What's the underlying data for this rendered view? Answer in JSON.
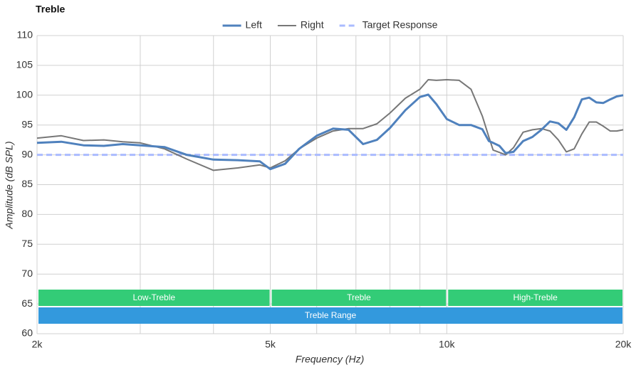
{
  "chart_data": {
    "type": "line",
    "title": "Treble",
    "x_label": "Frequency (Hz)",
    "y_label": "Amplitude (dB SPL)",
    "log_x": true,
    "grid": true,
    "legend": "top",
    "xlim": [
      2000,
      20000
    ],
    "ylim": [
      60,
      110
    ],
    "xticks": [
      {
        "value": 2000,
        "label": "2k"
      },
      {
        "value": 5000,
        "label": "5k"
      },
      {
        "value": 10000,
        "label": "10k"
      },
      {
        "value": 20000,
        "label": "20k"
      }
    ],
    "xgrid": [
      3000,
      4000,
      6000,
      7000,
      8000,
      9000
    ],
    "yticks": [
      60,
      65,
      70,
      75,
      80,
      85,
      90,
      95,
      100,
      105,
      110
    ],
    "x": [
      2000,
      2200,
      2400,
      2600,
      2800,
      3000,
      3300,
      3600,
      4000,
      4400,
      4800,
      5000,
      5300,
      5600,
      6000,
      6400,
      6800,
      7200,
      7600,
      8000,
      8500,
      9000,
      9300,
      9600,
      10000,
      10500,
      11000,
      11500,
      11800,
      12000,
      12300,
      12600,
      13000,
      13500,
      14000,
      14500,
      15000,
      15500,
      16000,
      16500,
      17000,
      17500,
      18000,
      18500,
      19000,
      19500,
      20000
    ],
    "series": [
      {
        "name": "Left",
        "color": "#4f81bd",
        "width": 3,
        "dash": false,
        "values": [
          92.0,
          92.2,
          91.6,
          91.5,
          91.8,
          91.6,
          91.3,
          90.0,
          89.2,
          89.1,
          88.9,
          87.6,
          88.5,
          91.0,
          93.2,
          94.4,
          94.2,
          91.8,
          92.5,
          94.5,
          97.5,
          99.7,
          100.1,
          98.5,
          96.0,
          95.0,
          95.0,
          94.3,
          92.3,
          92.0,
          91.5,
          90.3,
          90.5,
          92.3,
          93.0,
          94.2,
          95.6,
          95.3,
          94.2,
          96.3,
          99.3,
          99.6,
          98.8,
          98.7,
          99.3,
          99.8,
          100.0
        ]
      },
      {
        "name": "Right",
        "color": "#777777",
        "width": 2,
        "dash": false,
        "values": [
          92.8,
          93.2,
          92.4,
          92.5,
          92.2,
          92.0,
          91.0,
          89.3,
          87.4,
          87.8,
          88.3,
          87.8,
          89.0,
          91.0,
          92.8,
          94.0,
          94.4,
          94.4,
          95.2,
          97.0,
          99.5,
          101.0,
          102.6,
          102.5,
          102.6,
          102.5,
          101.0,
          96.5,
          93.0,
          90.8,
          90.4,
          90.0,
          91.2,
          93.8,
          94.2,
          94.4,
          94.0,
          92.5,
          90.5,
          91.0,
          93.5,
          95.5,
          95.5,
          94.8,
          94.0,
          94.0,
          94.2
        ]
      },
      {
        "name": "Target Response",
        "color": "#aabbff",
        "width": 3,
        "dash": true,
        "x": [
          2000,
          20000
        ],
        "values": [
          90,
          90
        ]
      }
    ],
    "bands": [
      {
        "label": "Low-Treble",
        "start": 2000,
        "end": 5000,
        "color": "#33cc77",
        "row": 0
      },
      {
        "label": "Treble",
        "start": 5000,
        "end": 10000,
        "color": "#33cc77",
        "row": 0
      },
      {
        "label": "High-Treble",
        "start": 10000,
        "end": 20000,
        "color": "#33cc77",
        "row": 0
      },
      {
        "label": "Treble Range",
        "start": 2000,
        "end": 20000,
        "color": "#3399dd",
        "row": 1
      }
    ]
  }
}
